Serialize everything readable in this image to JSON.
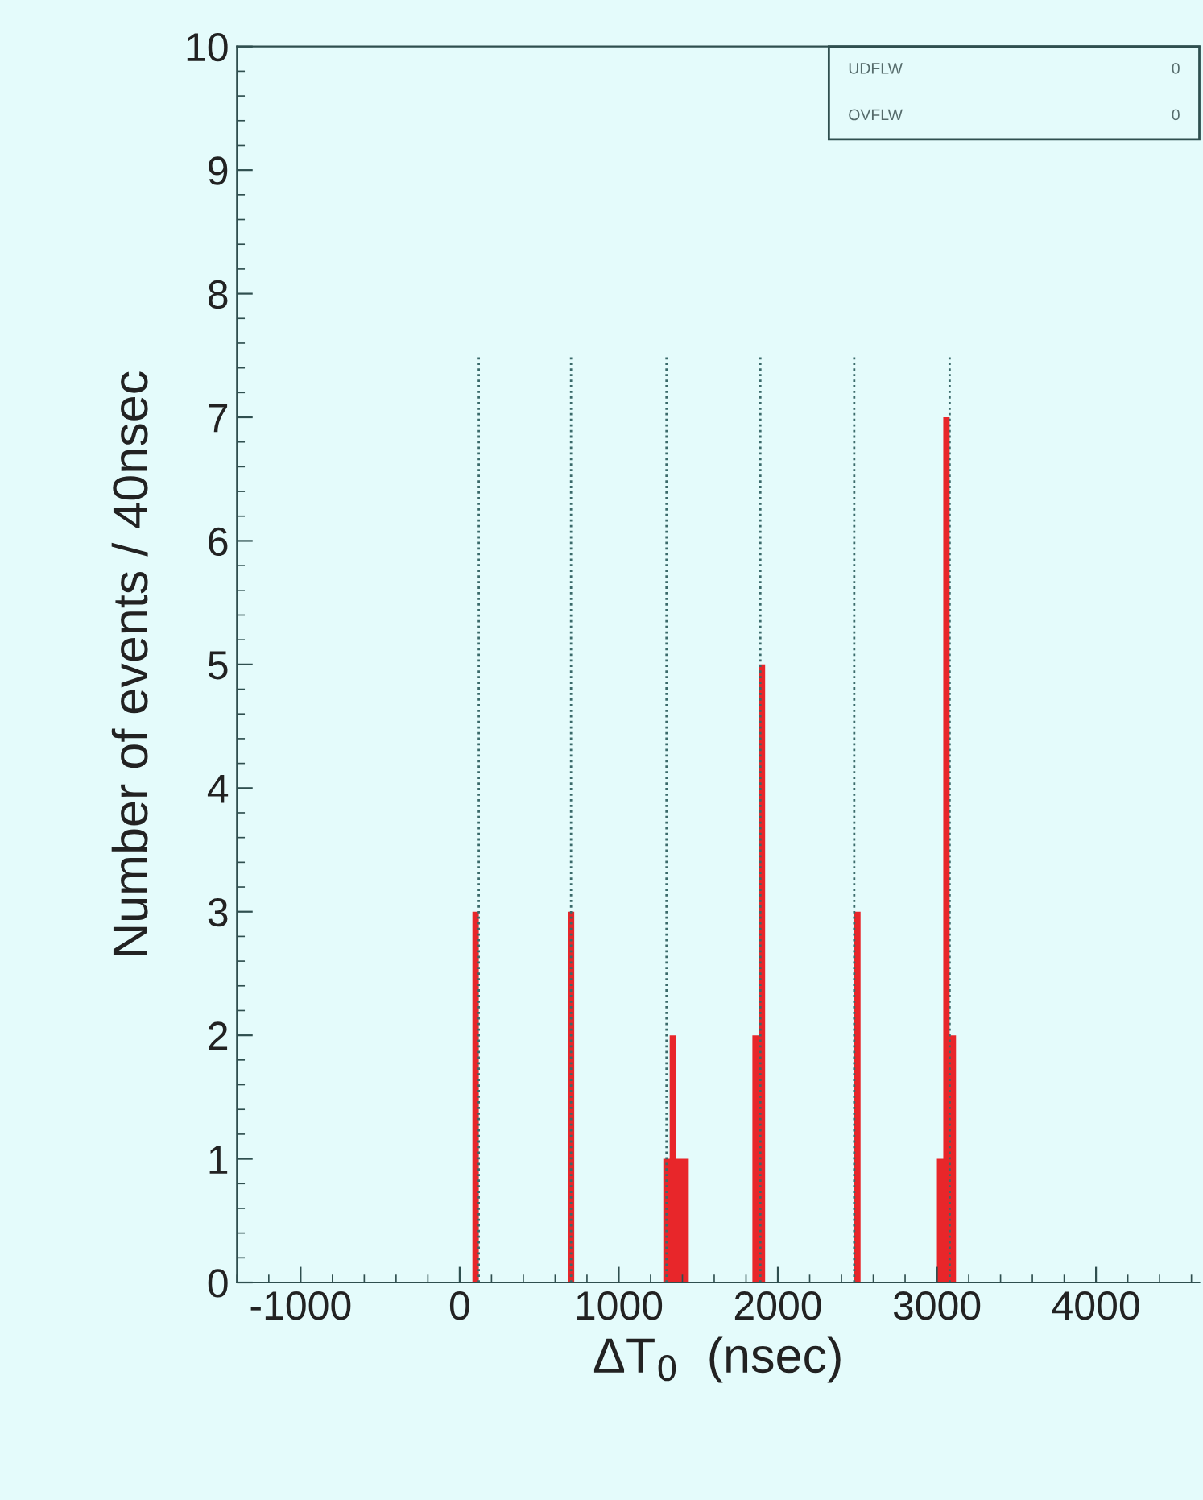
{
  "chart_data": {
    "type": "histogram",
    "xlabel": "ΔT$_{0}$  (nsec)",
    "ylabel": "Number of events / 40nsec",
    "bins": [
      80,
      120,
      160,
      200,
      240,
      280,
      320,
      360,
      400,
      440,
      480,
      520,
      560,
      600,
      640,
      680,
      720,
      760,
      800,
      840,
      880,
      920,
      960,
      1000,
      1040,
      1080,
      1120,
      1160,
      1200,
      1240,
      1280,
      1320,
      1360,
      1400,
      1440,
      1480,
      1520,
      1560,
      1600,
      1640,
      1680,
      1720,
      1760,
      1800,
      1840,
      1880,
      1920,
      1960,
      2000,
      2040,
      2080,
      2120,
      2160,
      2200,
      2240,
      2280,
      2320,
      2360,
      2400,
      2440,
      2480,
      2520,
      2560,
      2600,
      2640,
      2680,
      2720,
      2760,
      2800,
      2840,
      2880,
      2920,
      2960,
      3000,
      3040,
      3080,
      3120
    ],
    "values": [
      3,
      0,
      0,
      0,
      0,
      0,
      0,
      0,
      0,
      0,
      0,
      0,
      0,
      0,
      0,
      3,
      0,
      0,
      0,
      0,
      0,
      0,
      0,
      0,
      0,
      0,
      0,
      0,
      0,
      0,
      1,
      2,
      1,
      1,
      0,
      0,
      0,
      0,
      0,
      0,
      0,
      0,
      0,
      0,
      2,
      5,
      0,
      0,
      0,
      0,
      0,
      0,
      0,
      0,
      0,
      0,
      0,
      0,
      0,
      0,
      3,
      0,
      0,
      0,
      0,
      0,
      0,
      0,
      0,
      0,
      0,
      0,
      0,
      1,
      7,
      2
    ],
    "color": "#e8262a",
    "xlim": [
      -1400,
      4650
    ],
    "xticks": [
      -1000,
      0,
      1000,
      2000,
      3000,
      4000
    ],
    "ylim": [
      0,
      10
    ],
    "yticks": [
      0,
      1,
      2,
      3,
      4,
      5,
      6,
      7,
      8,
      9,
      10
    ],
    "ref_lines": [
      {
        "axis": "x",
        "value": 120,
        "color": "#3a6a6a",
        "line_style": "dotted"
      },
      {
        "axis": "x",
        "value": 700,
        "color": "#3a6a6a",
        "line_style": "dotted"
      },
      {
        "axis": "x",
        "value": 1300,
        "color": "#3a6a6a",
        "line_style": "dotted"
      },
      {
        "axis": "x",
        "value": 1890,
        "color": "#3a6a6a",
        "line_style": "dotted"
      },
      {
        "axis": "x",
        "value": 2480,
        "color": "#3a6a6a",
        "line_style": "dotted"
      },
      {
        "axis": "x",
        "value": 3080,
        "color": "#3a6a6a",
        "line_style": "dotted"
      }
    ],
    "annotations": [
      "UDFLW",
      "0",
      "OVFLW",
      "0"
    ]
  }
}
